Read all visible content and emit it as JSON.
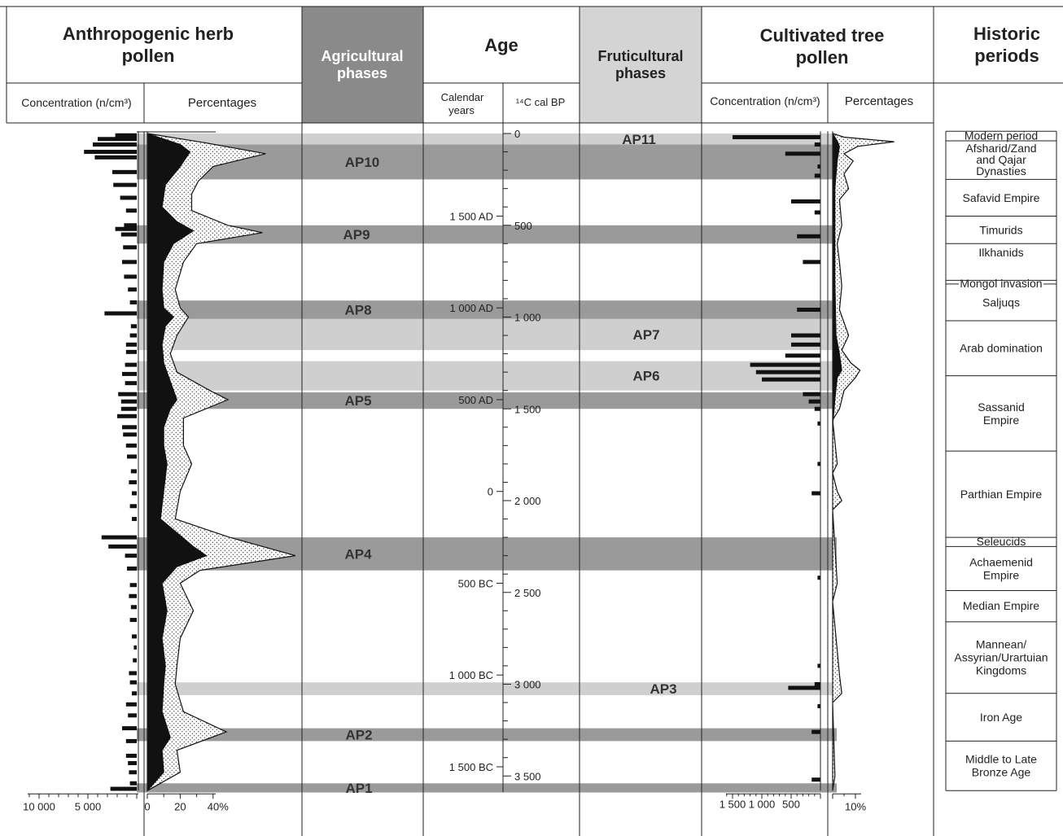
{
  "headers": {
    "herb": [
      "Anthropogenic herb",
      "pollen"
    ],
    "agri": [
      "Agricultural",
      "phases"
    ],
    "age": "Age",
    "fruti": [
      "Fruticultural",
      "phases"
    ],
    "tree": [
      "Cultivated tree",
      "pollen"
    ],
    "hist": [
      "Historic",
      "periods"
    ]
  },
  "subheaders": {
    "herb_conc": "Concentration (n/cm³)",
    "herb_pct": "Percentages",
    "cal": [
      "Calendar",
      "years"
    ],
    "c14": "¹⁴C cal BP",
    "tree_conc": "Concentration (n/cm³)",
    "tree_pct": "Percentages"
  },
  "colors": {
    "dark_band": "#9a9a9a",
    "light_band": "#cfcfcf",
    "agri_head": "#8a8a8a",
    "fruti_head": "#d4d4d4",
    "black_fill": "#111111"
  },
  "chart_data": {
    "type": "area",
    "depth_axis": "14C cal BP",
    "depth_range": [
      -12,
      3580
    ],
    "bp_ticks": [
      {
        "bp": 0,
        "label": "0"
      },
      {
        "bp": 500,
        "label": "500"
      },
      {
        "bp": 1000,
        "label": "1 000"
      },
      {
        "bp": 1500,
        "label": "1 500"
      },
      {
        "bp": 2000,
        "label": "2 000"
      },
      {
        "bp": 2500,
        "label": "2 500"
      },
      {
        "bp": 3000,
        "label": "3 000"
      },
      {
        "bp": 3500,
        "label": "3 500"
      }
    ],
    "cal_ticks": [
      {
        "bp": 450,
        "label": "1 500 AD"
      },
      {
        "bp": 950,
        "label": "1 000 AD"
      },
      {
        "bp": 1450,
        "label": "500 AD"
      },
      {
        "bp": 1950,
        "label": "0"
      },
      {
        "bp": 2450,
        "label": "500 BC"
      },
      {
        "bp": 2950,
        "label": "1 000 BC"
      },
      {
        "bp": 3450,
        "label": "1 500 BC"
      }
    ],
    "agricultural_phases": [
      {
        "label": "AP10",
        "from": 60,
        "to": 250
      },
      {
        "label": "AP9",
        "from": 500,
        "to": 600
      },
      {
        "label": "AP8",
        "from": 910,
        "to": 1010
      },
      {
        "label": "AP5",
        "from": 1410,
        "to": 1500
      },
      {
        "label": "AP4",
        "from": 2200,
        "to": 2380
      },
      {
        "label": "AP2",
        "from": 3240,
        "to": 3310
      },
      {
        "label": "AP1",
        "from": 3540,
        "to": 3590
      }
    ],
    "fruticultural_phases": [
      {
        "label": "AP11",
        "from": 0,
        "to": 60
      },
      {
        "label": "AP7",
        "from": 1010,
        "to": 1180
      },
      {
        "label": "AP6",
        "from": 1240,
        "to": 1400
      },
      {
        "label": "AP3",
        "from": 2990,
        "to": 3060
      }
    ],
    "herb_concentration": {
      "axis_ticks": [
        {
          "value": 10000,
          "label": "10 000"
        },
        {
          "value": 5000,
          "label": "5 000"
        },
        {
          "value": 0,
          "label": ""
        }
      ],
      "points": [
        [
          10,
          2200
        ],
        [
          30,
          4000
        ],
        [
          60,
          4500
        ],
        [
          100,
          5400
        ],
        [
          130,
          4300
        ],
        [
          210,
          2500
        ],
        [
          280,
          2400
        ],
        [
          350,
          1700
        ],
        [
          420,
          1100
        ],
        [
          500,
          1300
        ],
        [
          520,
          2200
        ],
        [
          550,
          1600
        ],
        [
          620,
          1400
        ],
        [
          700,
          1500
        ],
        [
          780,
          1300
        ],
        [
          850,
          900
        ],
        [
          920,
          700
        ],
        [
          980,
          3300
        ],
        [
          1050,
          600
        ],
        [
          1100,
          700
        ],
        [
          1150,
          1100
        ],
        [
          1190,
          1100
        ],
        [
          1260,
          1200
        ],
        [
          1310,
          1500
        ],
        [
          1360,
          1200
        ],
        [
          1420,
          1900
        ],
        [
          1460,
          1600
        ],
        [
          1500,
          1600
        ],
        [
          1540,
          2000
        ],
        [
          1600,
          1500
        ],
        [
          1640,
          1400
        ],
        [
          1700,
          1100
        ],
        [
          1760,
          1000
        ],
        [
          1840,
          600
        ],
        [
          1900,
          800
        ],
        [
          1960,
          500
        ],
        [
          2030,
          700
        ],
        [
          2100,
          500
        ],
        [
          2200,
          3600
        ],
        [
          2250,
          2900
        ],
        [
          2300,
          1200
        ],
        [
          2370,
          1000
        ],
        [
          2460,
          700
        ],
        [
          2520,
          800
        ],
        [
          2580,
          600
        ],
        [
          2650,
          700
        ],
        [
          2740,
          500
        ],
        [
          2800,
          300
        ],
        [
          2870,
          400
        ],
        [
          2940,
          800
        ],
        [
          2990,
          700
        ],
        [
          3050,
          500
        ],
        [
          3110,
          1100
        ],
        [
          3170,
          900
        ],
        [
          3240,
          1500
        ],
        [
          3310,
          1100
        ],
        [
          3390,
          1100
        ],
        [
          3430,
          900
        ],
        [
          3480,
          800
        ],
        [
          3540,
          700
        ],
        [
          3570,
          2700
        ]
      ]
    },
    "herb_percentages": {
      "axis_ticks": [
        {
          "value": 0,
          "label": "0"
        },
        {
          "value": 20,
          "label": "20"
        },
        {
          "value": 40,
          "label": "40%"
        }
      ],
      "black": [
        [
          0,
          0
        ],
        [
          60,
          20
        ],
        [
          100,
          26
        ],
        [
          180,
          20
        ],
        [
          280,
          11
        ],
        [
          400,
          9
        ],
        [
          480,
          18
        ],
        [
          530,
          28
        ],
        [
          600,
          16
        ],
        [
          700,
          10
        ],
        [
          850,
          9
        ],
        [
          950,
          10
        ],
        [
          1000,
          16
        ],
        [
          1050,
          11
        ],
        [
          1150,
          9
        ],
        [
          1250,
          10
        ],
        [
          1350,
          14
        ],
        [
          1450,
          18
        ],
        [
          1500,
          14
        ],
        [
          1600,
          10
        ],
        [
          1700,
          10
        ],
        [
          1800,
          12
        ],
        [
          1950,
          10
        ],
        [
          2100,
          8
        ],
        [
          2250,
          28
        ],
        [
          2300,
          36
        ],
        [
          2360,
          18
        ],
        [
          2450,
          9
        ],
        [
          2600,
          12
        ],
        [
          2750,
          9
        ],
        [
          2900,
          11
        ],
        [
          3000,
          10
        ],
        [
          3150,
          9
        ],
        [
          3290,
          14
        ],
        [
          3360,
          9
        ],
        [
          3480,
          10
        ],
        [
          3580,
          0
        ]
      ],
      "total": [
        [
          0,
          0
        ],
        [
          50,
          35
        ],
        [
          110,
          72
        ],
        [
          180,
          40
        ],
        [
          260,
          31
        ],
        [
          330,
          27
        ],
        [
          420,
          27
        ],
        [
          500,
          49
        ],
        [
          540,
          70
        ],
        [
          600,
          30
        ],
        [
          700,
          22
        ],
        [
          850,
          17
        ],
        [
          950,
          20
        ],
        [
          1000,
          25
        ],
        [
          1100,
          18
        ],
        [
          1200,
          14
        ],
        [
          1300,
          18
        ],
        [
          1400,
          38
        ],
        [
          1450,
          49
        ],
        [
          1550,
          22
        ],
        [
          1700,
          22
        ],
        [
          1800,
          27
        ],
        [
          1950,
          20
        ],
        [
          2100,
          17
        ],
        [
          2200,
          50
        ],
        [
          2300,
          90
        ],
        [
          2380,
          32
        ],
        [
          2450,
          20
        ],
        [
          2600,
          28
        ],
        [
          2750,
          20
        ],
        [
          2900,
          18
        ],
        [
          3000,
          17
        ],
        [
          3150,
          22
        ],
        [
          3260,
          48
        ],
        [
          3360,
          18
        ],
        [
          3480,
          20
        ],
        [
          3580,
          0
        ]
      ]
    },
    "tree_concentration": {
      "axis_ticks": [
        {
          "value": 1500,
          "label": "1 500"
        },
        {
          "value": 1000,
          "label": "1 000"
        },
        {
          "value": 500,
          "label": "500"
        }
      ],
      "points": [
        [
          20,
          1500
        ],
        [
          60,
          100
        ],
        [
          110,
          600
        ],
        [
          180,
          50
        ],
        [
          230,
          100
        ],
        [
          370,
          500
        ],
        [
          430,
          100
        ],
        [
          560,
          400
        ],
        [
          700,
          300
        ],
        [
          960,
          400
        ],
        [
          1100,
          500
        ],
        [
          1150,
          500
        ],
        [
          1210,
          600
        ],
        [
          1260,
          1200
        ],
        [
          1300,
          1100
        ],
        [
          1340,
          1000
        ],
        [
          1420,
          300
        ],
        [
          1460,
          200
        ],
        [
          1500,
          100
        ],
        [
          1580,
          50
        ],
        [
          1800,
          50
        ],
        [
          1960,
          150
        ],
        [
          2420,
          50
        ],
        [
          2900,
          50
        ],
        [
          3000,
          100
        ],
        [
          3020,
          550
        ],
        [
          3120,
          50
        ],
        [
          3260,
          150
        ],
        [
          3520,
          150
        ]
      ]
    },
    "tree_percentages": {
      "axis_ticks": [
        {
          "value": 10,
          "label": "10%"
        }
      ],
      "black": [
        [
          0,
          0
        ],
        [
          40,
          2
        ],
        [
          70,
          3
        ],
        [
          150,
          2
        ],
        [
          300,
          1
        ],
        [
          500,
          1
        ],
        [
          800,
          1
        ],
        [
          1100,
          1.5
        ],
        [
          1200,
          3
        ],
        [
          1290,
          4
        ],
        [
          1330,
          2
        ],
        [
          1450,
          1
        ],
        [
          1600,
          0
        ],
        [
          3580,
          0
        ]
      ],
      "total": [
        [
          0,
          0
        ],
        [
          20,
          5
        ],
        [
          45,
          27
        ],
        [
          70,
          11
        ],
        [
          110,
          5
        ],
        [
          150,
          9
        ],
        [
          220,
          5
        ],
        [
          300,
          7
        ],
        [
          360,
          3
        ],
        [
          500,
          4
        ],
        [
          600,
          2
        ],
        [
          700,
          3
        ],
        [
          830,
          4
        ],
        [
          960,
          3
        ],
        [
          1100,
          7
        ],
        [
          1180,
          4
        ],
        [
          1250,
          8
        ],
        [
          1290,
          12
        ],
        [
          1330,
          10
        ],
        [
          1400,
          5
        ],
        [
          1500,
          3
        ],
        [
          1560,
          0
        ],
        [
          1800,
          2
        ],
        [
          1850,
          0
        ],
        [
          1950,
          2
        ],
        [
          2000,
          4
        ],
        [
          2050,
          0
        ],
        [
          2450,
          2
        ],
        [
          2550,
          0
        ],
        [
          2950,
          3
        ],
        [
          3050,
          4
        ],
        [
          3100,
          0
        ],
        [
          3500,
          1
        ],
        [
          3580,
          0
        ]
      ]
    },
    "historic_periods": [
      {
        "label": [
          "Modern period"
        ],
        "from": -12,
        "to": 40,
        "size": 12
      },
      {
        "label": [
          "Afsharid/Zand",
          "and Qajar",
          "Dynasties"
        ],
        "from": 40,
        "to": 250,
        "size": 12
      },
      {
        "label": [
          "Safavid Empire"
        ],
        "from": 250,
        "to": 450,
        "size": 14
      },
      {
        "label": [
          "Timurids"
        ],
        "from": 450,
        "to": 600,
        "size": 14
      },
      {
        "label": [
          "Ilkhanids"
        ],
        "from": 600,
        "to": 800,
        "size": 14
      },
      {
        "label": [
          "Saljuqs"
        ],
        "from": 800,
        "to": 1020,
        "size": 13
      },
      {
        "label": [
          "Arab domination"
        ],
        "from": 1020,
        "to": 1320,
        "size": 14
      },
      {
        "label": [
          "Sassanid",
          "Empire"
        ],
        "from": 1320,
        "to": 1730,
        "size": 14
      },
      {
        "label": [
          "Parthian Empire"
        ],
        "from": 1730,
        "to": 2200,
        "size": 14
      },
      {
        "label": [
          "Seleucids"
        ],
        "from": 2200,
        "to": 2250,
        "size": 12
      },
      {
        "label": [
          "Achaemenid",
          "Empire"
        ],
        "from": 2250,
        "to": 2490,
        "size": 14
      },
      {
        "label": [
          "Median Empire"
        ],
        "from": 2490,
        "to": 2660,
        "size": 13
      },
      {
        "label": [
          "Mannean/",
          "Assyrian/Urartuian",
          "Kingdoms"
        ],
        "from": 2660,
        "to": 3050,
        "size": 14
      },
      {
        "label": [
          "Iron Age"
        ],
        "from": 3050,
        "to": 3310,
        "size": 14
      },
      {
        "label": [
          "Middle to Late",
          "Bronze Age"
        ],
        "from": 3310,
        "to": 3580,
        "size": 14
      }
    ],
    "mongol_label": "Mongol invasion",
    "mongol_bp": 820
  }
}
